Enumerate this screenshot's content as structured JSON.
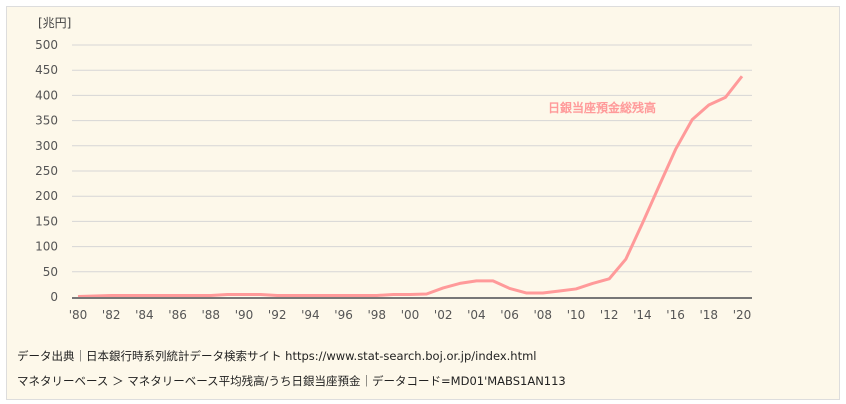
{
  "chart_data": {
    "type": "line",
    "unit_label": "[兆円]",
    "ylim": [
      0,
      500
    ],
    "yticks": [
      0,
      50,
      100,
      150,
      200,
      250,
      300,
      350,
      400,
      450,
      500
    ],
    "xticks": [
      "'80",
      "'82",
      "'84",
      "'86",
      "'88",
      "'90",
      "'92",
      "'94",
      "'96",
      "'98",
      "'00",
      "'02",
      "'04",
      "'06",
      "'08",
      "'10",
      "'12",
      "'14",
      "'16",
      "'18",
      "'20"
    ],
    "grid": true,
    "series": [
      {
        "name": "日銀当座預金総残高",
        "color": "#ff9a9a",
        "x": [
          1980,
          1981,
          1982,
          1983,
          1984,
          1985,
          1986,
          1987,
          1988,
          1989,
          1990,
          1991,
          1992,
          1993,
          1994,
          1995,
          1996,
          1997,
          1998,
          1999,
          2000,
          2001,
          2002,
          2003,
          2004,
          2005,
          2006,
          2007,
          2008,
          2009,
          2010,
          2011,
          2012,
          2013,
          2014,
          2015,
          2016,
          2017,
          2018,
          2019,
          2020
        ],
        "values": [
          1,
          2,
          3,
          3,
          3,
          3,
          3,
          3,
          3,
          5,
          5,
          5,
          3,
          3,
          3,
          3,
          3,
          3,
          3,
          5,
          5,
          6,
          18,
          27,
          32,
          32,
          17,
          8,
          8,
          12,
          16,
          27,
          36,
          75,
          146,
          220,
          293,
          352,
          381,
          396,
          438
        ]
      }
    ]
  },
  "footer": {
    "source": "データ出典｜日本銀行時系列統計データ検索サイト https://www.stat-search.boj.or.jp/index.html",
    "series_path": "マネタリーベース ＞ マネタリーベース平均残高/うち日銀当座預金｜データコード=MD01'MABS1AN113"
  }
}
